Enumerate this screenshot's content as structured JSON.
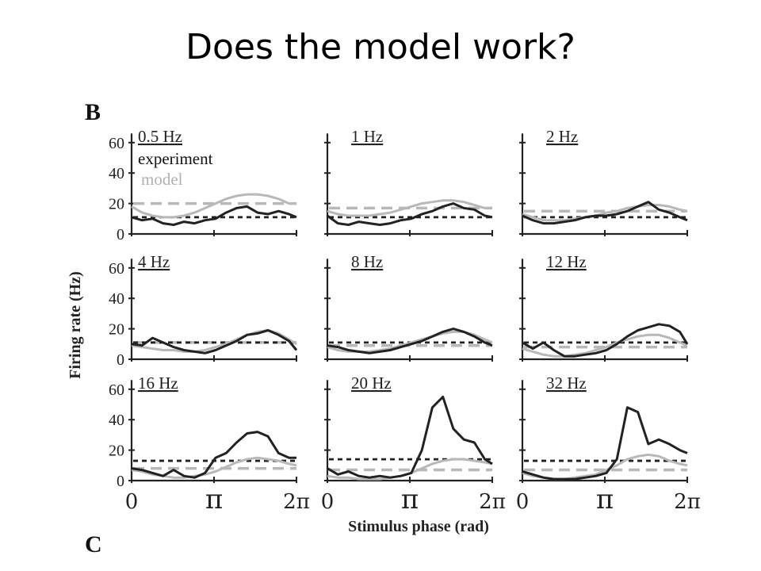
{
  "slide": {
    "title": "Does the model work?"
  },
  "figure": {
    "panel_label": "B",
    "next_panel_label": "C",
    "ylabel": "Firing rate (Hz)",
    "xlabel": "Stimulus phase (rad)"
  },
  "chart_data": {
    "type": "line",
    "title": "",
    "xlabel": "Stimulus phase (rad)",
    "ylabel": "Firing rate (Hz)",
    "xlim": [
      0,
      6.2832
    ],
    "ylim": [
      0,
      65
    ],
    "y_ticks": [
      "0",
      "20",
      "40",
      "60"
    ],
    "x_ticks": [
      "0",
      "π",
      "2π"
    ],
    "x_tick_values": [
      0,
      3.1416,
      6.2832
    ],
    "legend": {
      "position": "top-left (first panel)",
      "entries": [
        "experiment",
        "model"
      ]
    },
    "colors": {
      "experiment": "#222222",
      "model": "#b8b8b8",
      "exp_mean": "#222222",
      "model_mean": "#b8b8b8"
    },
    "panels": [
      {
        "label": "0.5 Hz",
        "experiment_mean": 11,
        "model_mean": 20,
        "x": [
          0,
          0.4,
          0.8,
          1.2,
          1.6,
          2.0,
          2.4,
          2.8,
          3.2,
          3.6,
          4.0,
          4.4,
          4.8,
          5.2,
          5.6,
          6.0,
          6.2832
        ],
        "experiment": [
          11,
          9,
          10,
          7,
          6,
          8,
          7,
          9,
          10,
          14,
          17,
          18,
          14,
          13,
          15,
          13,
          11
        ],
        "model": [
          18,
          14,
          12,
          11,
          11,
          12,
          14,
          17,
          20,
          23,
          25,
          26,
          26,
          25,
          23,
          20,
          20
        ]
      },
      {
        "label": "1 Hz",
        "experiment_mean": 11,
        "model_mean": 17,
        "x": [
          0,
          0.4,
          0.8,
          1.2,
          1.6,
          2.0,
          2.4,
          2.8,
          3.2,
          3.6,
          4.0,
          4.4,
          4.8,
          5.2,
          5.6,
          6.0,
          6.2832
        ],
        "experiment": [
          12,
          7,
          6,
          8,
          7,
          6,
          7,
          9,
          10,
          13,
          15,
          18,
          20,
          17,
          16,
          12,
          11
        ],
        "model": [
          15,
          13,
          12,
          12,
          12,
          13,
          14,
          16,
          18,
          20,
          21,
          22,
          22,
          21,
          19,
          17,
          17
        ]
      },
      {
        "label": "2 Hz",
        "experiment_mean": 11,
        "model_mean": 15,
        "x": [
          0,
          0.4,
          0.8,
          1.2,
          1.6,
          2.0,
          2.4,
          2.8,
          3.2,
          3.6,
          4.0,
          4.4,
          4.8,
          5.2,
          5.6,
          6.0,
          6.2832
        ],
        "experiment": [
          12,
          9,
          7,
          7,
          8,
          9,
          11,
          12,
          12,
          13,
          15,
          18,
          21,
          16,
          14,
          11,
          9
        ],
        "model": [
          13,
          11,
          9,
          9,
          9,
          10,
          11,
          12,
          14,
          15,
          17,
          18,
          19,
          19,
          18,
          16,
          15
        ]
      },
      {
        "label": "4 Hz",
        "experiment_mean": 11,
        "model_mean": 11,
        "x": [
          0,
          0.4,
          0.8,
          1.2,
          1.6,
          2.0,
          2.4,
          2.8,
          3.2,
          3.6,
          4.0,
          4.4,
          4.8,
          5.2,
          5.6,
          6.0,
          6.2832
        ],
        "experiment": [
          10,
          9,
          14,
          11,
          8,
          6,
          5,
          4,
          6,
          9,
          12,
          16,
          17,
          19,
          16,
          12,
          6
        ],
        "model": [
          9,
          8,
          7,
          6,
          6,
          5,
          5,
          6,
          8,
          10,
          13,
          16,
          18,
          19,
          17,
          13,
          10
        ]
      },
      {
        "label": "8 Hz",
        "experiment_mean": 11,
        "model_mean": 9,
        "x": [
          0,
          0.4,
          0.8,
          1.2,
          1.6,
          2.0,
          2.4,
          2.8,
          3.2,
          3.6,
          4.0,
          4.4,
          4.8,
          5.2,
          5.6,
          6.0,
          6.2832
        ],
        "experiment": [
          9,
          8,
          6,
          5,
          4,
          5,
          6,
          8,
          10,
          12,
          15,
          18,
          20,
          18,
          15,
          11,
          9
        ],
        "model": [
          8,
          6,
          5,
          5,
          5,
          6,
          7,
          9,
          11,
          13,
          15,
          17,
          18,
          18,
          16,
          13,
          11
        ]
      },
      {
        "label": "12 Hz",
        "experiment_mean": 11,
        "model_mean": 8,
        "x": [
          0,
          0.4,
          0.8,
          1.2,
          1.6,
          2.0,
          2.4,
          2.8,
          3.2,
          3.6,
          4.0,
          4.4,
          4.8,
          5.2,
          5.6,
          6.0,
          6.2832
        ],
        "experiment": [
          11,
          7,
          11,
          6,
          2,
          2,
          3,
          4,
          6,
          10,
          15,
          19,
          21,
          23,
          22,
          18,
          10
        ],
        "model": [
          7,
          5,
          3,
          2,
          2,
          3,
          4,
          6,
          8,
          11,
          13,
          15,
          16,
          16,
          14,
          11,
          9
        ]
      },
      {
        "label": "16 Hz",
        "experiment_mean": 13,
        "model_mean": 8,
        "x": [
          0,
          0.4,
          0.8,
          1.2,
          1.6,
          2.0,
          2.4,
          2.8,
          3.2,
          3.6,
          4.0,
          4.4,
          4.8,
          5.2,
          5.6,
          6.0,
          6.2832
        ],
        "experiment": [
          8,
          7,
          5,
          3,
          7,
          3,
          2,
          5,
          15,
          18,
          25,
          31,
          32,
          29,
          18,
          15,
          15
        ],
        "model": [
          7,
          6,
          4,
          3,
          2,
          2,
          3,
          4,
          6,
          9,
          12,
          14,
          15,
          14,
          13,
          11,
          10
        ]
      },
      {
        "label": "20 Hz",
        "experiment_mean": 14,
        "model_mean": 7,
        "x": [
          0,
          0.4,
          0.8,
          1.2,
          1.6,
          2.0,
          2.4,
          2.8,
          3.2,
          3.6,
          4.0,
          4.4,
          4.8,
          5.2,
          5.6,
          6.0,
          6.2832
        ],
        "experiment": [
          8,
          4,
          6,
          3,
          2,
          3,
          2,
          3,
          5,
          20,
          48,
          55,
          34,
          27,
          25,
          14,
          11
        ],
        "model": [
          3,
          2,
          2,
          1,
          1,
          1,
          2,
          3,
          5,
          8,
          11,
          13,
          14,
          14,
          13,
          12,
          11
        ]
      },
      {
        "label": "32 Hz",
        "experiment_mean": 13,
        "model_mean": 7,
        "x": [
          0,
          0.4,
          0.8,
          1.2,
          1.6,
          2.0,
          2.4,
          2.8,
          3.2,
          3.6,
          4.0,
          4.4,
          4.8,
          5.2,
          5.6,
          6.0,
          6.2832
        ],
        "experiment": [
          6,
          4,
          2,
          1,
          1,
          1,
          2,
          3,
          5,
          14,
          48,
          45,
          24,
          27,
          24,
          20,
          18
        ],
        "model": [
          5,
          3,
          2,
          1,
          1,
          2,
          3,
          4,
          7,
          10,
          14,
          16,
          17,
          16,
          13,
          11,
          10
        ]
      }
    ]
  }
}
